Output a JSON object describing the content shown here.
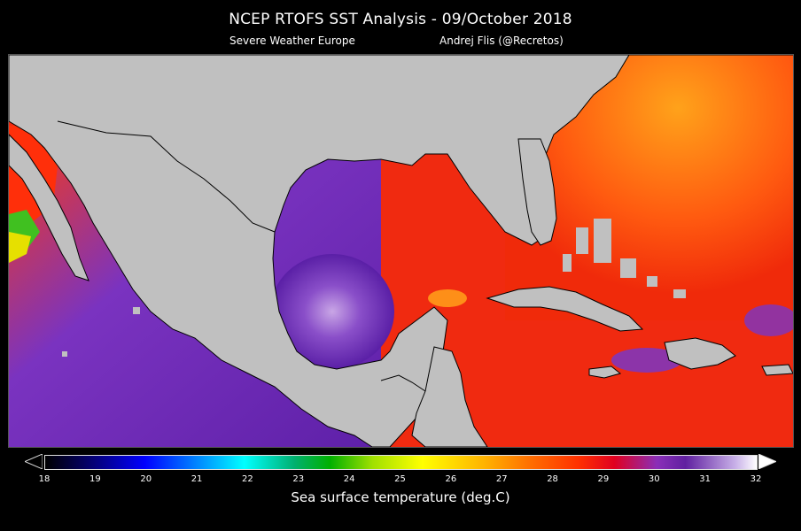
{
  "header": {
    "title": "NCEP RTOFS SST Analysis -  09/October 2018",
    "source": "Severe Weather Europe",
    "author": "Andrej Flis (@Recretos)"
  },
  "colorbar": {
    "label": "Sea surface temperature (deg.C)",
    "ticks": [
      "18",
      "19",
      "20",
      "21",
      "22",
      "23",
      "24",
      "25",
      "26",
      "27",
      "28",
      "29",
      "30",
      "31",
      "32"
    ],
    "min": 18,
    "max": 32,
    "extend": "both"
  },
  "map": {
    "land_color": "#c0c0c0",
    "coastline_color": "#000000",
    "region": "Gulf of Mexico, Caribbean Sea and western Atlantic"
  }
}
